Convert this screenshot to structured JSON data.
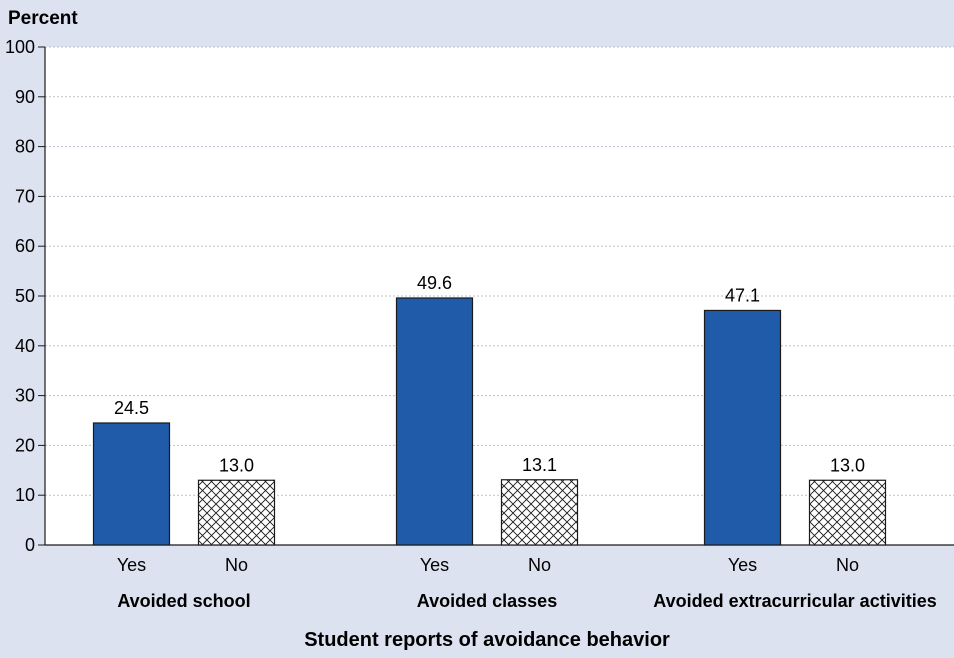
{
  "chart_data": {
    "type": "bar",
    "ylabel": "Percent",
    "xlabel": "Student reports of avoidance behavior",
    "ylim": [
      0,
      100
    ],
    "yticks": [
      0,
      10,
      20,
      30,
      40,
      50,
      60,
      70,
      80,
      90,
      100
    ],
    "grid": true,
    "groups": [
      {
        "label": "Avoided school",
        "bars": [
          {
            "category": "Yes",
            "value": 24.5,
            "label": "24.5"
          },
          {
            "category": "No",
            "value": 13.0,
            "label": "13.0"
          }
        ]
      },
      {
        "label": "Avoided classes",
        "bars": [
          {
            "category": "Yes",
            "value": 49.6,
            "label": "49.6"
          },
          {
            "category": "No",
            "value": 13.1,
            "label": "13.1"
          }
        ]
      },
      {
        "label": "Avoided extracurricular activities",
        "bars": [
          {
            "category": "Yes",
            "value": 47.1,
            "label": "47.1"
          },
          {
            "category": "No",
            "value": 13.0,
            "label": "13.0"
          }
        ]
      }
    ],
    "colors": {
      "background": "#dde2f0",
      "plot_background": "#ffffff",
      "yes_bar": "#1f5ba8",
      "no_bar_pattern": "crosshatch",
      "no_bar_fill": "#ffffff",
      "bar_stroke": "#1a1a1a",
      "grid": "#b9bfcc"
    }
  }
}
